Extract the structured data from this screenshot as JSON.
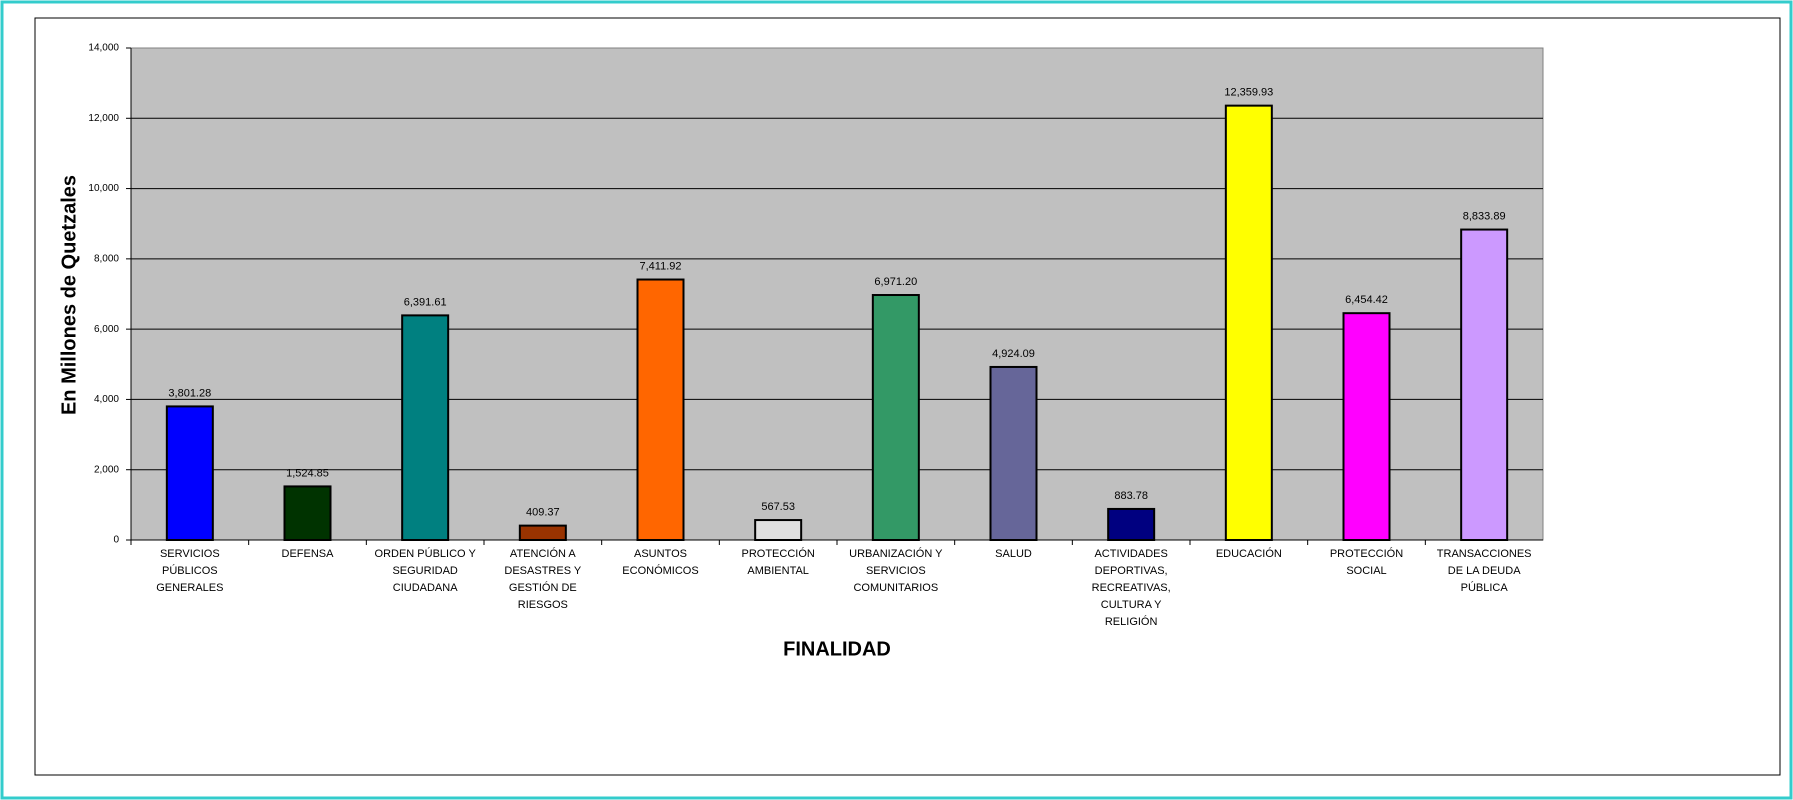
{
  "chart_data": {
    "type": "bar",
    "y_axis_label": "En Millones de Quetzales",
    "x_axis_label": "FINALIDAD",
    "categories": [
      "SERVICIOS PÚBLICOS GENERALES",
      "DEFENSA",
      "ORDEN PÚBLICO Y SEGURIDAD CIUDADANA",
      "ATENCIÓN A DESASTRES Y GESTIÓN DE RIESGOS",
      "ASUNTOS ECONÓMICOS",
      "PROTECCIÓN AMBIENTAL",
      "URBANIZACIÓN Y SERVICIOS COMUNITARIOS",
      "SALUD",
      "ACTIVIDADES DEPORTIVAS, RECREATIVAS, CULTURA Y RELIGIÓN",
      "EDUCACIÓN",
      "PROTECCIÓN SOCIAL",
      "TRANSACCIONES DE LA DEUDA PÚBLICA"
    ],
    "values": [
      3801.28,
      1524.85,
      6391.61,
      409.37,
      7411.92,
      567.53,
      6971.2,
      4924.09,
      883.78,
      12359.93,
      6454.42,
      8833.89
    ],
    "value_labels": [
      "3,801.28",
      "1,524.85",
      "6,391.61",
      "409.37",
      "7,411.92",
      "567.53",
      "6,971.20",
      "4,924.09",
      "883.78",
      "12,359.93",
      "6,454.42",
      "8,833.89"
    ],
    "colors": [
      "#0000ff",
      "#003300",
      "#008080",
      "#993300",
      "#ff6600",
      "#e0e0e0",
      "#339966",
      "#666699",
      "#000080",
      "#ffff00",
      "#ff00ff",
      "#cc99ff"
    ],
    "ylim": [
      0,
      14000
    ],
    "yticks": [
      0,
      {
        "value": 2000,
        "label": "2,000"
      },
      {
        "value": 4000,
        "label": "4,000"
      },
      {
        "value": 6000,
        "label": "6,000"
      },
      {
        "value": 8000,
        "label": "8,000"
      },
      {
        "value": 10000,
        "label": "10,000"
      },
      {
        "value": 12000,
        "label": "12,000"
      },
      {
        "value": 14000,
        "label": "14,000"
      }
    ],
    "grid": true
  }
}
